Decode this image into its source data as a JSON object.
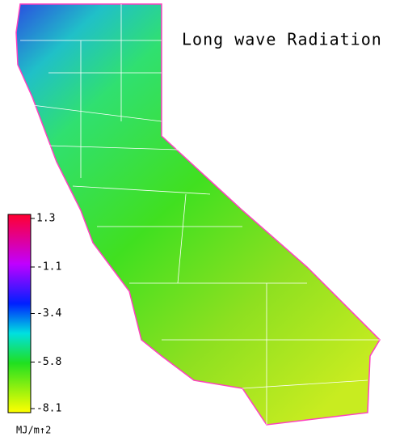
{
  "title": "Long wave Radiation",
  "colorbar": {
    "ticks": [
      1.3,
      -1.1,
      -3.4,
      -5.8,
      -8.1
    ],
    "unit": "MJ/m↑2"
  }
}
